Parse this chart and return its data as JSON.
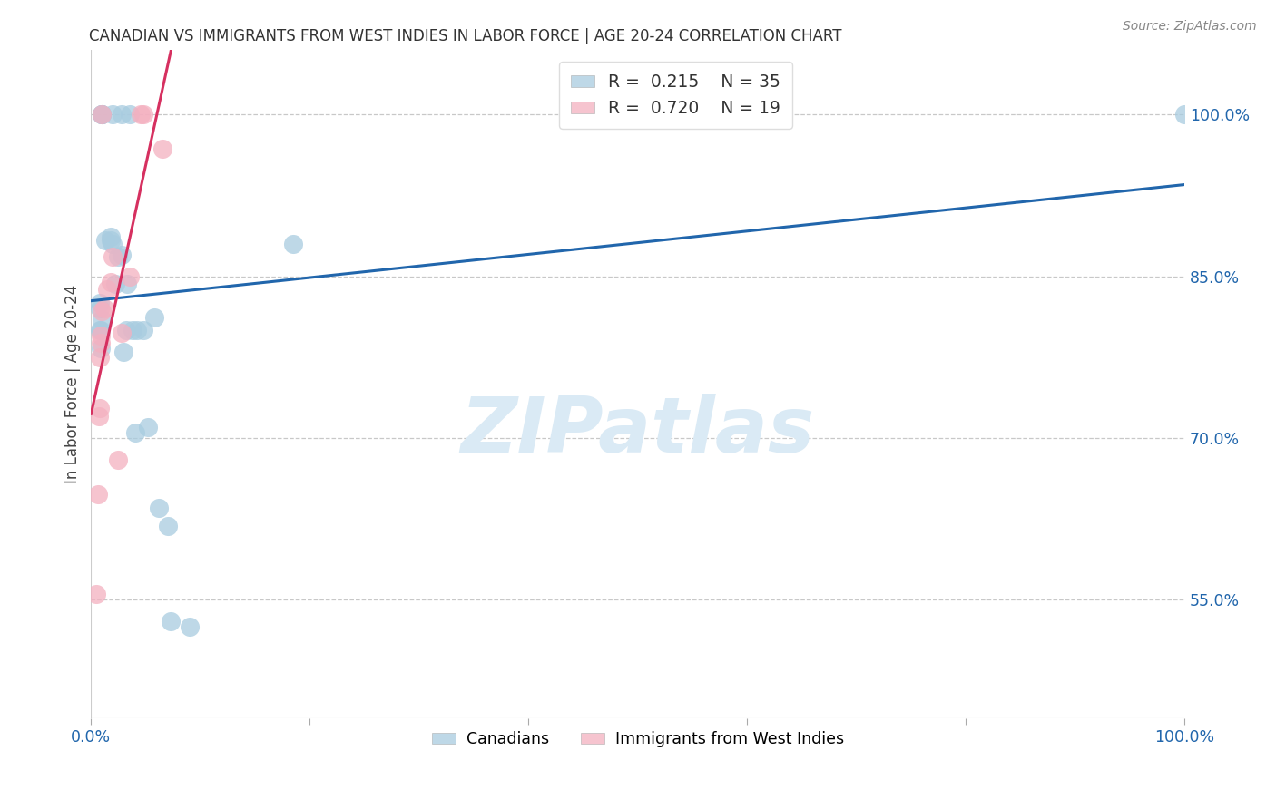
{
  "title": "CANADIAN VS IMMIGRANTS FROM WEST INDIES IN LABOR FORCE | AGE 20-24 CORRELATION CHART",
  "source": "Source: ZipAtlas.com",
  "ylabel": "In Labor Force | Age 20-24",
  "yticks": [
    0.55,
    0.7,
    0.85,
    1.0
  ],
  "ytick_labels": [
    "55.0%",
    "70.0%",
    "85.0%",
    "100.0%"
  ],
  "legend_blue_R": "0.215",
  "legend_blue_N": "35",
  "legend_pink_R": "0.720",
  "legend_pink_N": "19",
  "legend_blue_label": "Canadians",
  "legend_pink_label": "Immigrants from West Indies",
  "blue_scatter_color": "#a8cce0",
  "pink_scatter_color": "#f4b0c0",
  "blue_line_color": "#2166ac",
  "pink_line_color": "#d63060",
  "grid_color": "#c8c8c8",
  "bg_color": "#ffffff",
  "watermark_text": "ZIPatlas",
  "watermark_color": "#daeaf5",
  "title_color": "#333333",
  "axis_tick_color": "#2166ac",
  "canadians_x": [
    0.008,
    0.008,
    0.008,
    0.009,
    0.009,
    0.01,
    0.01,
    0.01,
    0.01,
    0.01,
    0.013,
    0.018,
    0.018,
    0.02,
    0.02,
    0.022,
    0.025,
    0.028,
    0.028,
    0.03,
    0.032,
    0.033,
    0.035,
    0.038,
    0.04,
    0.042,
    0.048,
    0.052,
    0.058,
    0.062,
    0.07,
    0.073,
    0.09,
    0.185,
    1.0
  ],
  "canadians_y": [
    0.8,
    0.82,
    0.825,
    0.783,
    0.8,
    0.81,
    1.0,
    1.0,
    1.0,
    1.0,
    0.883,
    0.883,
    0.887,
    0.88,
    1.0,
    0.843,
    0.868,
    0.87,
    1.0,
    0.78,
    0.8,
    0.843,
    1.0,
    0.8,
    0.705,
    0.8,
    0.8,
    0.71,
    0.812,
    0.635,
    0.618,
    0.53,
    0.525,
    0.88,
    1.0
  ],
  "immigrants_x": [
    0.005,
    0.006,
    0.007,
    0.008,
    0.008,
    0.009,
    0.009,
    0.01,
    0.01,
    0.012,
    0.015,
    0.018,
    0.02,
    0.025,
    0.028,
    0.035,
    0.045,
    0.048,
    0.065
  ],
  "immigrants_y": [
    0.555,
    0.648,
    0.72,
    0.728,
    0.775,
    0.788,
    0.795,
    0.818,
    1.0,
    0.82,
    0.838,
    0.845,
    0.868,
    0.68,
    0.798,
    0.85,
    1.0,
    1.0,
    0.968
  ],
  "xlim": [
    0.0,
    1.0
  ],
  "ylim": [
    0.44,
    1.06
  ],
  "xticks": [
    0.0,
    0.2,
    0.4,
    0.6,
    0.8,
    1.0
  ],
  "xtick_labels": [
    "0.0%",
    "",
    "",
    "",
    "",
    "100.0%"
  ]
}
